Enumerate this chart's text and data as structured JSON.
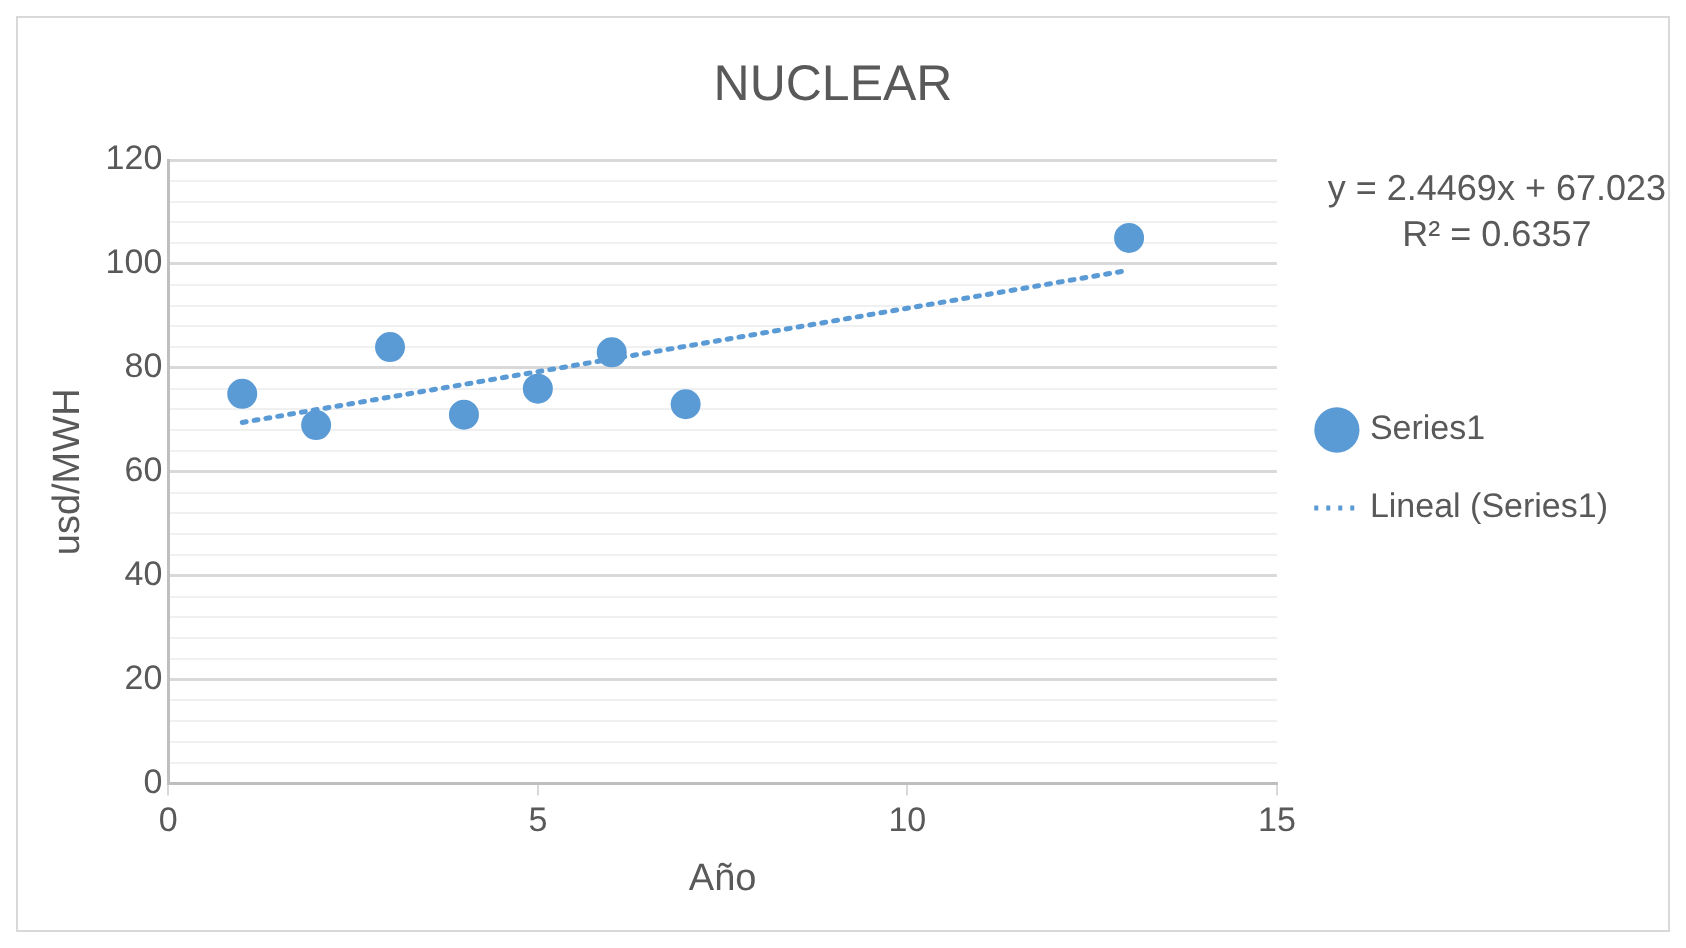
{
  "chart_data": {
    "type": "scatter",
    "title": "NUCLEAR",
    "xlabel": "Año",
    "ylabel": "usd/MWH",
    "xlim": [
      0,
      15
    ],
    "xticks": [
      0,
      5,
      10,
      15
    ],
    "ylim": [
      0,
      120
    ],
    "yticks": [
      0,
      {
        "value": 4,
        "label": null
      },
      {
        "value": 8,
        "label": null
      },
      {
        "value": 12,
        "label": null
      },
      {
        "value": 16,
        "label": null
      },
      20,
      {
        "value": 24,
        "label": null
      },
      {
        "value": 28,
        "label": null
      },
      {
        "value": 32,
        "label": null
      },
      {
        "value": 36,
        "label": null
      },
      40,
      {
        "value": 44,
        "label": null
      },
      {
        "value": 48,
        "label": null
      },
      {
        "value": 52,
        "label": null
      },
      {
        "value": 56,
        "label": null
      },
      60,
      {
        "value": 64,
        "label": null
      },
      {
        "value": 68,
        "label": null
      },
      {
        "value": 72,
        "label": null
      },
      {
        "value": 76,
        "label": null
      },
      80,
      {
        "value": 84,
        "label": null
      },
      {
        "value": 88,
        "label": null
      },
      {
        "value": 92,
        "label": null
      },
      {
        "value": 96,
        "label": null
      },
      100,
      {
        "value": 104,
        "label": null
      },
      {
        "value": 108,
        "label": null
      },
      {
        "value": 112,
        "label": null
      },
      {
        "value": 116,
        "label": null
      },
      120
    ],
    "grid": "y",
    "legend": "right",
    "series": [
      {
        "name": "Series1",
        "color": "#5b9bd5",
        "marker": "circle",
        "x": [
          1,
          2,
          3,
          4,
          5,
          6,
          7,
          13
        ],
        "values": [
          75,
          69,
          84,
          71,
          76,
          83,
          73,
          105
        ]
      },
      {
        "name": "Lineal (Series1)",
        "type": "line",
        "color": "#5b9bd5",
        "marker": "none",
        "line_style": "dotted",
        "x": [
          1,
          13
        ],
        "values": [
          69.5,
          98.8
        ]
      }
    ],
    "annotations": [
      "y = 2.4469x + 67.023",
      "R² = 0.6357"
    ]
  }
}
